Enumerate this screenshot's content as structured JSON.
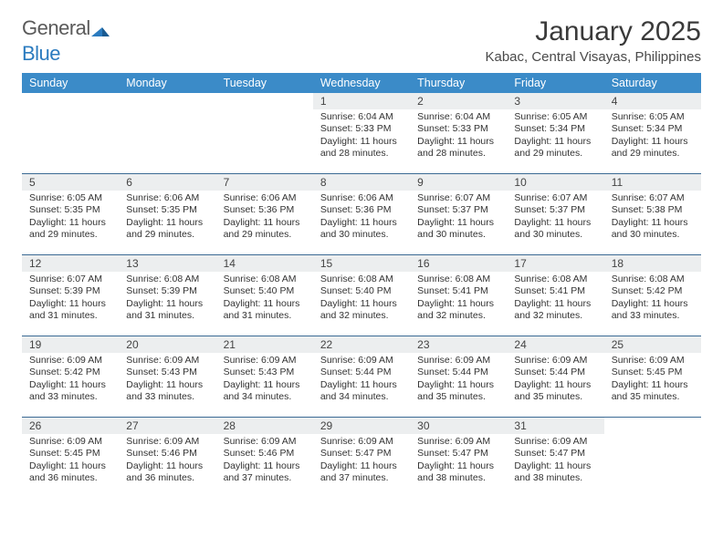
{
  "brand": {
    "word1": "General",
    "word2": "Blue"
  },
  "title": "January 2025",
  "location": "Kabac, Central Visayas, Philippines",
  "colors": {
    "header_bg": "#3b8bc8",
    "header_text": "#ffffff",
    "daynum_bg": "#eceeef",
    "week_divider": "#3b6a94",
    "text": "#333333",
    "brand_gray": "#5a5a5a",
    "brand_blue": "#2b7bbf"
  },
  "day_names": [
    "Sunday",
    "Monday",
    "Tuesday",
    "Wednesday",
    "Thursday",
    "Friday",
    "Saturday"
  ],
  "weeks": [
    [
      null,
      null,
      null,
      {
        "n": "1",
        "sr": "6:04 AM",
        "ss": "5:33 PM",
        "dl": "11 hours and 28 minutes."
      },
      {
        "n": "2",
        "sr": "6:04 AM",
        "ss": "5:33 PM",
        "dl": "11 hours and 28 minutes."
      },
      {
        "n": "3",
        "sr": "6:05 AM",
        "ss": "5:34 PM",
        "dl": "11 hours and 29 minutes."
      },
      {
        "n": "4",
        "sr": "6:05 AM",
        "ss": "5:34 PM",
        "dl": "11 hours and 29 minutes."
      }
    ],
    [
      {
        "n": "5",
        "sr": "6:05 AM",
        "ss": "5:35 PM",
        "dl": "11 hours and 29 minutes."
      },
      {
        "n": "6",
        "sr": "6:06 AM",
        "ss": "5:35 PM",
        "dl": "11 hours and 29 minutes."
      },
      {
        "n": "7",
        "sr": "6:06 AM",
        "ss": "5:36 PM",
        "dl": "11 hours and 29 minutes."
      },
      {
        "n": "8",
        "sr": "6:06 AM",
        "ss": "5:36 PM",
        "dl": "11 hours and 30 minutes."
      },
      {
        "n": "9",
        "sr": "6:07 AM",
        "ss": "5:37 PM",
        "dl": "11 hours and 30 minutes."
      },
      {
        "n": "10",
        "sr": "6:07 AM",
        "ss": "5:37 PM",
        "dl": "11 hours and 30 minutes."
      },
      {
        "n": "11",
        "sr": "6:07 AM",
        "ss": "5:38 PM",
        "dl": "11 hours and 30 minutes."
      }
    ],
    [
      {
        "n": "12",
        "sr": "6:07 AM",
        "ss": "5:39 PM",
        "dl": "11 hours and 31 minutes."
      },
      {
        "n": "13",
        "sr": "6:08 AM",
        "ss": "5:39 PM",
        "dl": "11 hours and 31 minutes."
      },
      {
        "n": "14",
        "sr": "6:08 AM",
        "ss": "5:40 PM",
        "dl": "11 hours and 31 minutes."
      },
      {
        "n": "15",
        "sr": "6:08 AM",
        "ss": "5:40 PM",
        "dl": "11 hours and 32 minutes."
      },
      {
        "n": "16",
        "sr": "6:08 AM",
        "ss": "5:41 PM",
        "dl": "11 hours and 32 minutes."
      },
      {
        "n": "17",
        "sr": "6:08 AM",
        "ss": "5:41 PM",
        "dl": "11 hours and 32 minutes."
      },
      {
        "n": "18",
        "sr": "6:08 AM",
        "ss": "5:42 PM",
        "dl": "11 hours and 33 minutes."
      }
    ],
    [
      {
        "n": "19",
        "sr": "6:09 AM",
        "ss": "5:42 PM",
        "dl": "11 hours and 33 minutes."
      },
      {
        "n": "20",
        "sr": "6:09 AM",
        "ss": "5:43 PM",
        "dl": "11 hours and 33 minutes."
      },
      {
        "n": "21",
        "sr": "6:09 AM",
        "ss": "5:43 PM",
        "dl": "11 hours and 34 minutes."
      },
      {
        "n": "22",
        "sr": "6:09 AM",
        "ss": "5:44 PM",
        "dl": "11 hours and 34 minutes."
      },
      {
        "n": "23",
        "sr": "6:09 AM",
        "ss": "5:44 PM",
        "dl": "11 hours and 35 minutes."
      },
      {
        "n": "24",
        "sr": "6:09 AM",
        "ss": "5:44 PM",
        "dl": "11 hours and 35 minutes."
      },
      {
        "n": "25",
        "sr": "6:09 AM",
        "ss": "5:45 PM",
        "dl": "11 hours and 35 minutes."
      }
    ],
    [
      {
        "n": "26",
        "sr": "6:09 AM",
        "ss": "5:45 PM",
        "dl": "11 hours and 36 minutes."
      },
      {
        "n": "27",
        "sr": "6:09 AM",
        "ss": "5:46 PM",
        "dl": "11 hours and 36 minutes."
      },
      {
        "n": "28",
        "sr": "6:09 AM",
        "ss": "5:46 PM",
        "dl": "11 hours and 37 minutes."
      },
      {
        "n": "29",
        "sr": "6:09 AM",
        "ss": "5:47 PM",
        "dl": "11 hours and 37 minutes."
      },
      {
        "n": "30",
        "sr": "6:09 AM",
        "ss": "5:47 PM",
        "dl": "11 hours and 38 minutes."
      },
      {
        "n": "31",
        "sr": "6:09 AM",
        "ss": "5:47 PM",
        "dl": "11 hours and 38 minutes."
      },
      null
    ]
  ],
  "labels": {
    "sunrise": "Sunrise:",
    "sunset": "Sunset:",
    "daylight": "Daylight:"
  }
}
